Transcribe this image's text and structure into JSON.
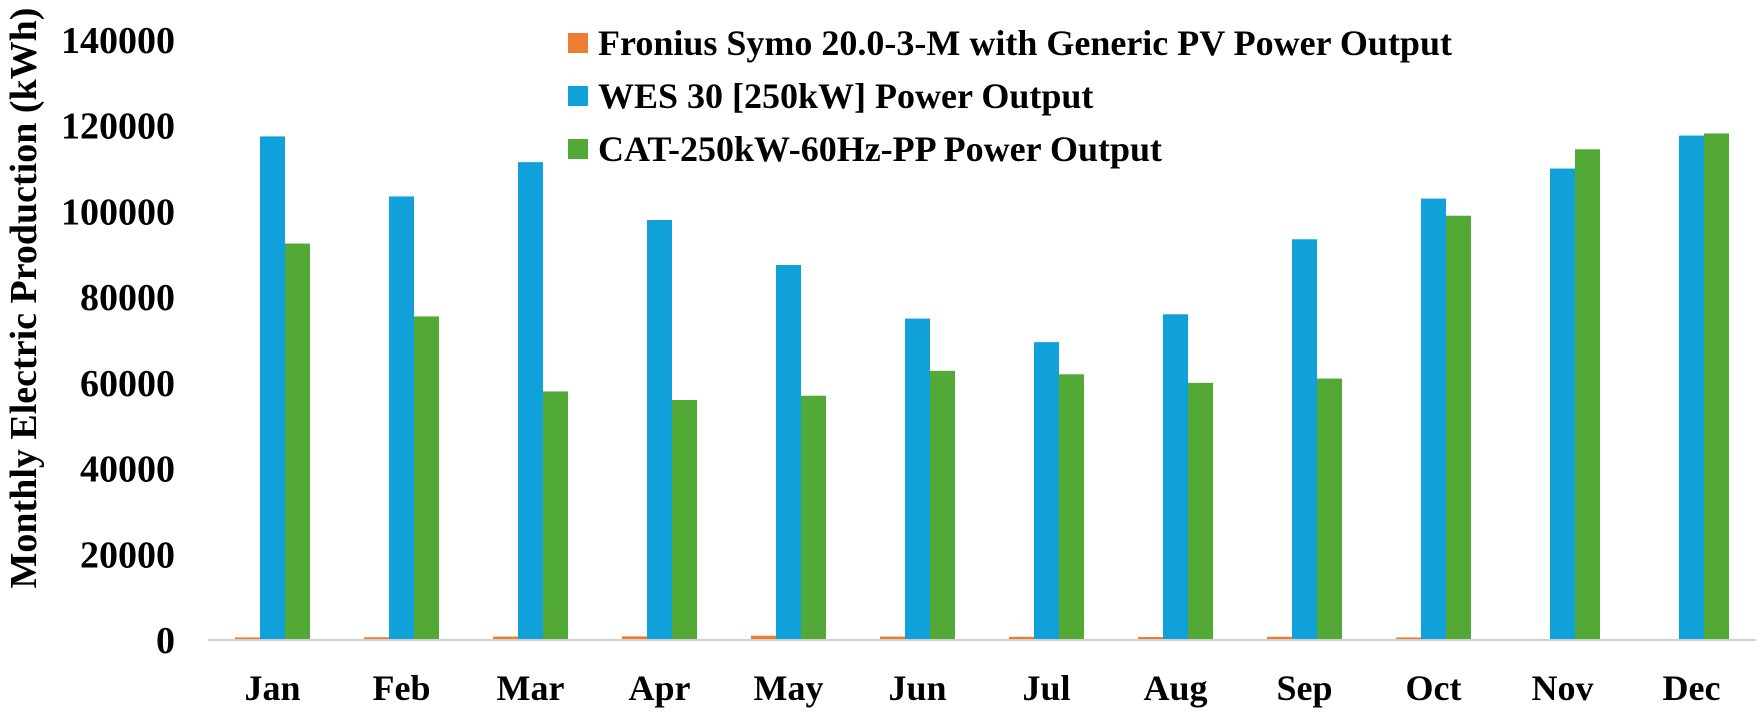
{
  "chart_data": {
    "type": "bar",
    "title": "",
    "xlabel": "",
    "ylabel": "Monthly Electric Production (kWh)",
    "ylim": [
      0,
      140000
    ],
    "yticks": [
      0,
      20000,
      40000,
      60000,
      80000,
      100000,
      120000,
      140000
    ],
    "grid": false,
    "legend_position": "top-center",
    "categories": [
      "Jan",
      "Feb",
      "Mar",
      "Apr",
      "May",
      "Jun",
      "Jul",
      "Aug",
      "Sep",
      "Oct",
      "Nov",
      "Dec"
    ],
    "series": [
      {
        "name": "Fronius Symo 20.0-3-M with Generic PV Power Output",
        "color": "#ED7D31",
        "values": [
          600,
          650,
          800,
          850,
          1000,
          800,
          750,
          700,
          750,
          600,
          0,
          0
        ]
      },
      {
        "name": "WES 30 [250kW] Power Output",
        "color": "#10A0DA",
        "values": [
          117500,
          103500,
          111500,
          98000,
          87500,
          75000,
          69500,
          76000,
          93500,
          103000,
          110000,
          117700
        ]
      },
      {
        "name": "CAT-250kW-60Hz-PP Power Output",
        "color": "#52A935",
        "values": [
          92500,
          75500,
          58000,
          56000,
          57000,
          62800,
          62000,
          60000,
          61000,
          99000,
          114500,
          118200
        ]
      }
    ]
  }
}
